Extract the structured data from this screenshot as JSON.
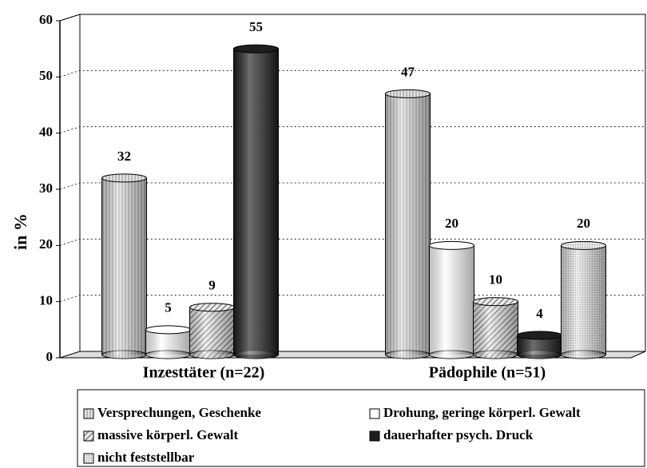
{
  "chart_data": {
    "type": "bar",
    "ylabel": "in %",
    "categories": [
      "Inzesttäter (n=22)",
      "Pädophile (n=51)"
    ],
    "series": [
      {
        "name": "Versprechungen, Geschenke",
        "color": "#c8c8c8",
        "pattern": "vertical",
        "values": [
          32,
          47
        ]
      },
      {
        "name": "Drohung, geringe körperl. Gewalt",
        "color": "#ffffff",
        "pattern": "none",
        "values": [
          5,
          20
        ]
      },
      {
        "name": "massive körperl. Gewalt",
        "color": "#b0b0b0",
        "pattern": "diagonal",
        "values": [
          9,
          10
        ]
      },
      {
        "name": "dauerhafter psych. Druck",
        "color": "#1e1e1e",
        "pattern": "none",
        "values": [
          55,
          4
        ]
      },
      {
        "name": "nicht feststellbar",
        "color": "#d8d8d8",
        "pattern": "dots",
        "values": [
          null,
          20
        ]
      }
    ],
    "ylim": [
      0,
      60
    ],
    "yticks": [
      0,
      10,
      20,
      30,
      40,
      50,
      60
    ],
    "grid": true
  }
}
